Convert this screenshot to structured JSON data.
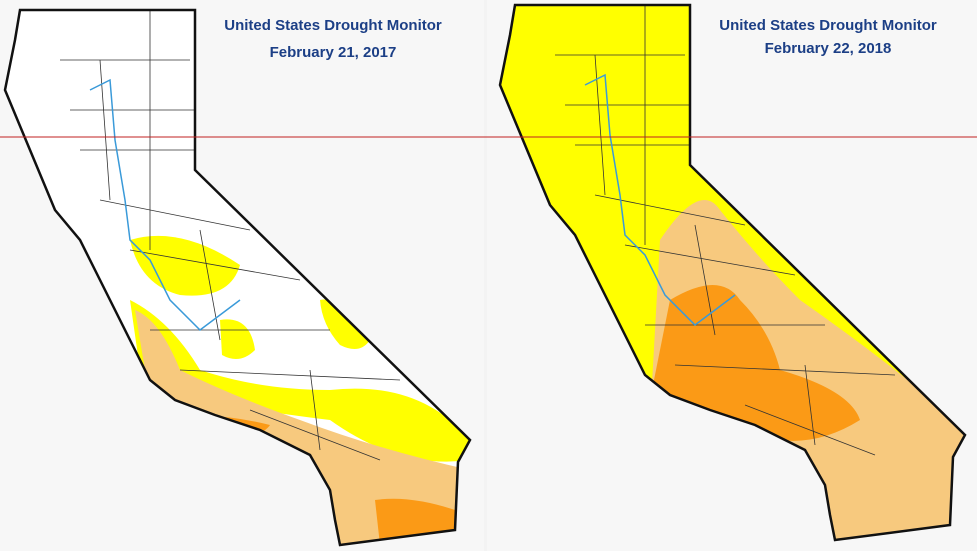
{
  "maps": [
    {
      "title": "United States Drought Monitor",
      "date": "February 21, 2017"
    },
    {
      "title": "United States Drought Monitor",
      "date": "February 22, 2018"
    }
  ]
}
